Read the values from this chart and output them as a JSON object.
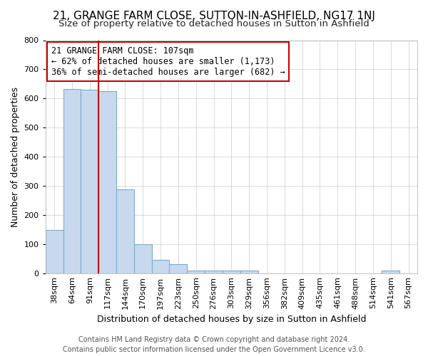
{
  "title": "21, GRANGE FARM CLOSE, SUTTON-IN-ASHFIELD, NG17 1NJ",
  "subtitle": "Size of property relative to detached houses in Sutton in Ashfield",
  "xlabel": "Distribution of detached houses by size in Sutton in Ashfield",
  "ylabel": "Number of detached properties",
  "categories": [
    "38sqm",
    "64sqm",
    "91sqm",
    "117sqm",
    "144sqm",
    "170sqm",
    "197sqm",
    "223sqm",
    "250sqm",
    "276sqm",
    "303sqm",
    "329sqm",
    "356sqm",
    "382sqm",
    "409sqm",
    "435sqm",
    "461sqm",
    "488sqm",
    "514sqm",
    "541sqm",
    "567sqm"
  ],
  "values": [
    148,
    632,
    630,
    625,
    288,
    100,
    45,
    30,
    10,
    8,
    8,
    8,
    0,
    0,
    0,
    0,
    0,
    0,
    0,
    8,
    0
  ],
  "bar_color": "#c8d9ee",
  "bar_edge_color": "#7aabcf",
  "annotation_box_text": "21 GRANGE FARM CLOSE: 107sqm\n← 62% of detached houses are smaller (1,173)\n36% of semi-detached houses are larger (682) →",
  "annotation_box_edge_color": "#cc0000",
  "vline_x": 2.5,
  "vline_color": "#cc0000",
  "vline_linewidth": 1.5,
  "ylim": [
    0,
    800
  ],
  "yticks": [
    0,
    100,
    200,
    300,
    400,
    500,
    600,
    700,
    800
  ],
  "grid_color": "#cccccc",
  "plot_bg_color": "#ffffff",
  "fig_bg_color": "#ffffff",
  "footer_text": "Contains HM Land Registry data © Crown copyright and database right 2024.\nContains public sector information licensed under the Open Government Licence v3.0.",
  "title_fontsize": 11,
  "subtitle_fontsize": 9.5,
  "xlabel_fontsize": 9,
  "ylabel_fontsize": 9,
  "tick_fontsize": 8,
  "annotation_fontsize": 8.5,
  "footer_fontsize": 7
}
